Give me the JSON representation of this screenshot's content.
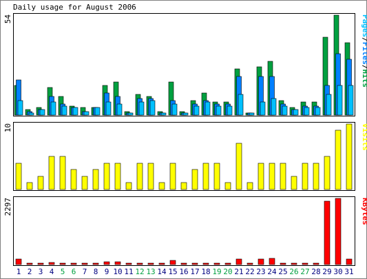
{
  "chart_data": {
    "type": "bar",
    "title": "Daily usage for August 2006",
    "x": [
      "1",
      "2",
      "3",
      "4",
      "5",
      "6",
      "7",
      "8",
      "9",
      "10",
      "11",
      "12",
      "13",
      "14",
      "15",
      "16",
      "17",
      "18",
      "19",
      "20",
      "21",
      "22",
      "23",
      "24",
      "25",
      "26",
      "27",
      "28",
      "29",
      "30",
      "31"
    ],
    "weekend_days": [
      "5",
      "6",
      "12",
      "13",
      "19",
      "20",
      "26",
      "27"
    ],
    "panels": [
      {
        "id": "hits",
        "ymax_label": "54",
        "ylim": [
          0,
          54
        ],
        "legend": [
          "Pages",
          "/",
          "Files",
          "/",
          "Hits"
        ],
        "series": [
          {
            "name": "Hits",
            "color": "#00a040",
            "values": [
              16,
              3,
              4,
              15,
              10,
              5,
              4,
              4,
              16,
              18,
              2,
              11,
              10,
              2,
              18,
              2,
              8,
              12,
              7,
              7,
              25,
              1,
              26,
              29,
              8,
              4,
              7,
              7,
              42,
              54,
              39
            ]
          },
          {
            "name": "Files",
            "color": "#0080ff",
            "values": [
              19,
              2,
              3,
              10,
              6,
              4,
              2,
              4,
              12,
              10,
              1,
              9,
              9,
              1,
              8,
              1,
              6,
              8,
              6,
              6,
              21,
              1,
              21,
              21,
              6,
              3,
              5,
              5,
              16,
              33,
              30
            ]
          },
          {
            "name": "Pages",
            "color": "#00c0ff",
            "values": [
              8,
              1,
              3,
              7,
              5,
              4,
              2,
              4,
              7,
              6,
              1,
              7,
              8,
              1,
              6,
              1,
              5,
              7,
              5,
              5,
              11,
              1,
              7,
              9,
              5,
              3,
              4,
              4,
              11,
              16,
              16
            ]
          }
        ]
      },
      {
        "id": "visits",
        "ymax_label": "10",
        "ylim": [
          0,
          10
        ],
        "legend": [
          "Visits"
        ],
        "series": [
          {
            "name": "Visits",
            "color": "#ffff00",
            "values": [
              4,
              1,
              2,
              5,
              5,
              3,
              2,
              3,
              4,
              4,
              1,
              4,
              4,
              1,
              4,
              1,
              3,
              4,
              4,
              1,
              7,
              1,
              4,
              4,
              4,
              2,
              4,
              4,
              5,
              9,
              10
            ]
          }
        ]
      },
      {
        "id": "kbytes",
        "ymax_label": "2297",
        "ylim": [
          0,
          2297
        ],
        "legend": [
          "KBytes"
        ],
        "series": [
          {
            "name": "KBytes",
            "color": "#ff0000",
            "values": [
              190,
              30,
              30,
              80,
              30,
              30,
              30,
              30,
              100,
              100,
              30,
              30,
              30,
              30,
              140,
              30,
              30,
              30,
              30,
              30,
              200,
              30,
              200,
              220,
              50,
              30,
              30,
              30,
              2200,
              2297,
              200
            ]
          }
        ]
      }
    ],
    "legend_colors": {
      "pages": "#00c0ff",
      "files": "#0080ff",
      "hits": "#00a040",
      "visits": "#ffff00",
      "kbytes": "#ff0000",
      "weekend_label": "#00a040",
      "weekday_label": "#000080"
    }
  }
}
